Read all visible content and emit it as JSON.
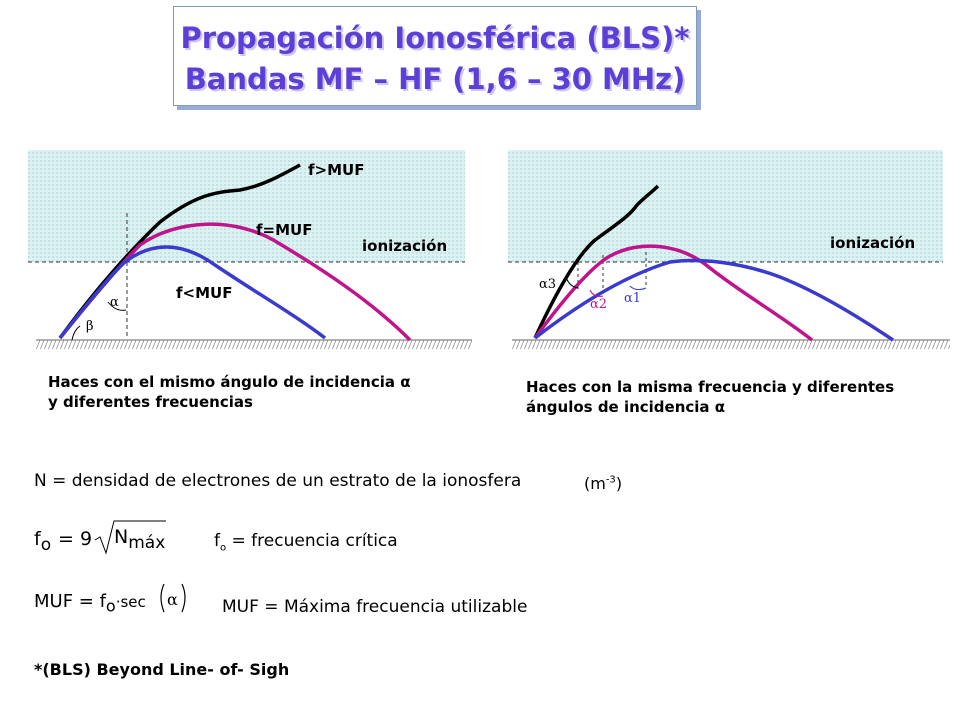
{
  "title": {
    "line1": "Propagación Ionosférica (BLS)*",
    "line2": "Bandas MF – HF (1,6 – 30 MHz)"
  },
  "left_diagram": {
    "label_f_gt": "f>MUF",
    "label_f_eq": "f=MUF",
    "label_f_lt": "f<MUF",
    "label_layer": "ionización",
    "label_alpha": "α",
    "label_beta": "β",
    "caption_line1": "Haces con el mismo ángulo de incidencia α",
    "caption_line2": "y diferentes frecuencias",
    "colors": {
      "f_gt": "#000000",
      "f_eq": "#c0148c",
      "f_lt": "#3a3acf"
    }
  },
  "right_diagram": {
    "label_layer": "ionización",
    "label_a3": "α3",
    "label_a2": "α2",
    "label_a1": "α1",
    "caption_line1": "Haces con la misma frecuencia y diferentes",
    "caption_line2": "ángulos de incidencia α"
  },
  "definitions": {
    "n_text": "N = densidad de electrones de un estrato de la ionosfera",
    "n_unit": "(m",
    "n_unit_exp": "-3",
    "n_unit_close": ")",
    "fo_lhs": "f",
    "fo_sub": "o",
    "fo_eq": "= 9",
    "fo_n": "N",
    "fo_n_sub": "máx",
    "fo_desc_f": "f",
    "fo_desc_sub": "o",
    "fo_desc": " = frecuencia crítica",
    "muf_lhs": "MUF = f",
    "muf_sub": "o",
    "muf_rhs": "·sec",
    "muf_arg": "α",
    "muf_desc": "MUF = Máxima frecuencia utilizable"
  },
  "footnote": "*(BLS) Beyond Line- of- Sigh"
}
